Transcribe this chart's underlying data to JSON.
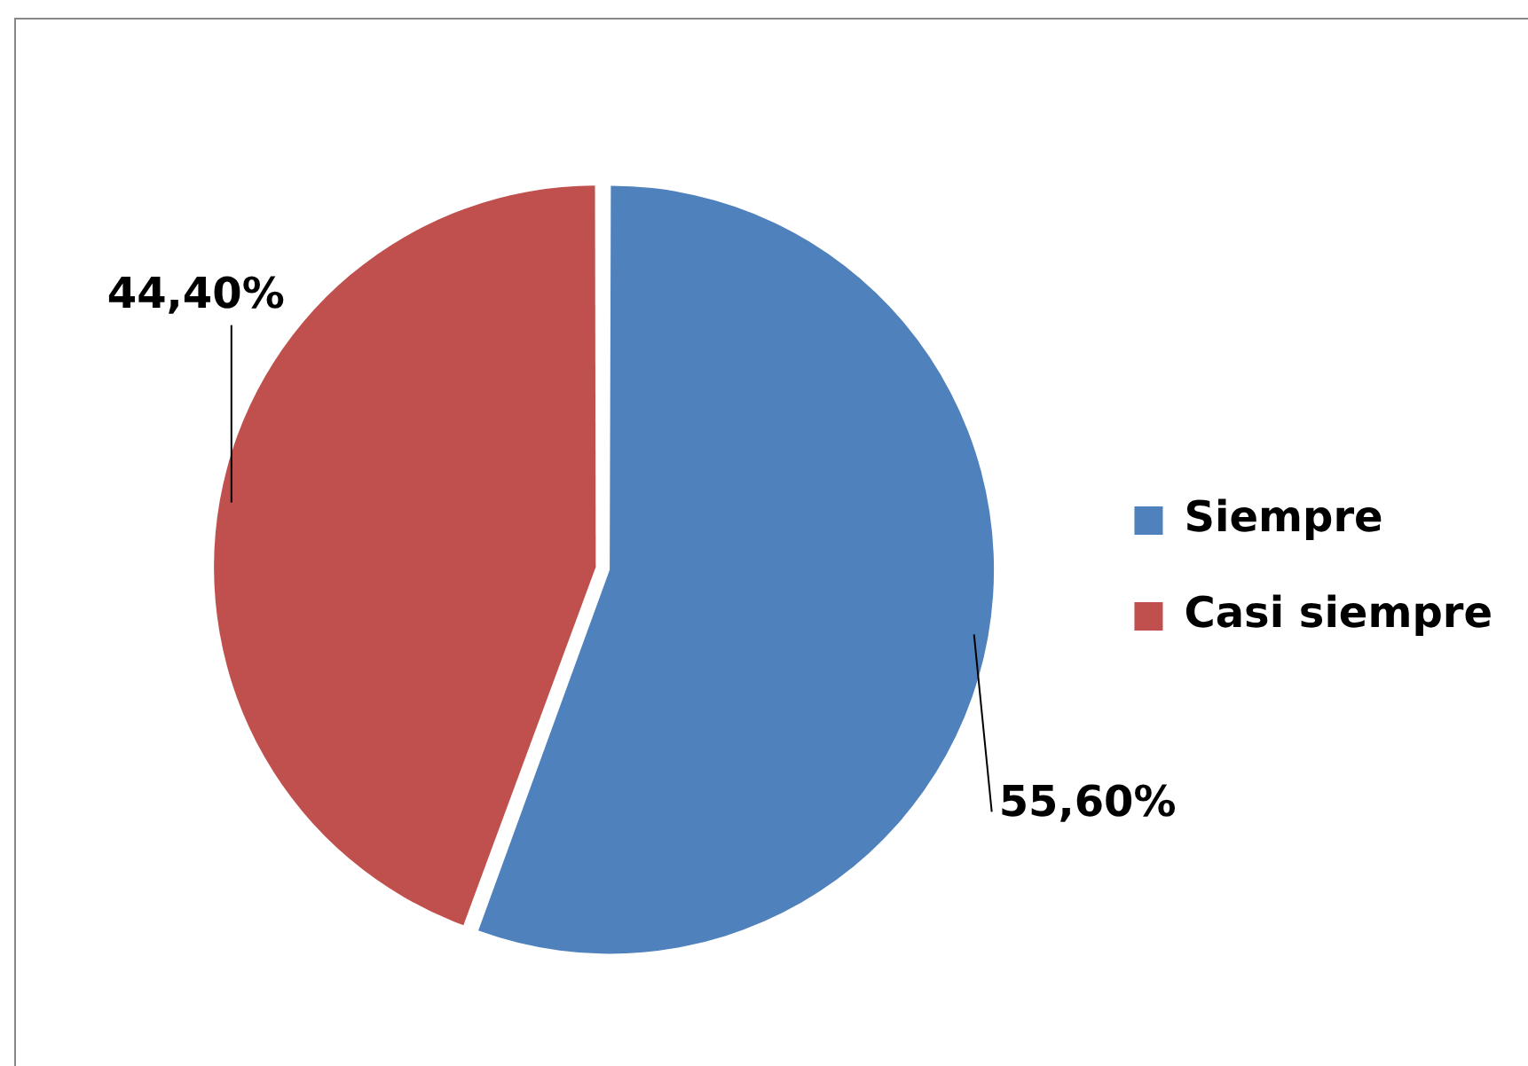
{
  "chart_data": {
    "type": "pie",
    "categories": [
      "Siempre",
      "Casi siempre"
    ],
    "values": [
      55.6,
      44.4
    ],
    "colors": [
      "#4f81bd",
      "#c0504d"
    ],
    "value_labels": [
      "55,60%",
      "44,40%"
    ],
    "legend": "right"
  }
}
